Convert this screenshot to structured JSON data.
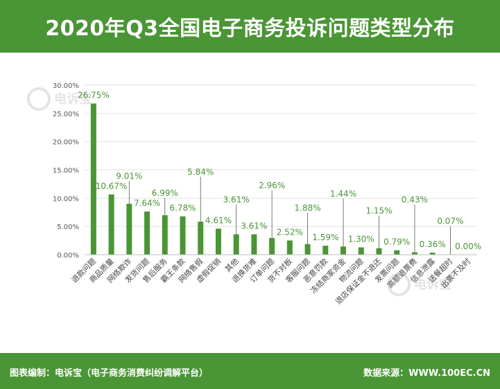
{
  "header": {
    "title": "2020年Q3全国电子商务投诉问题类型分布"
  },
  "footer": {
    "left": "图表编制：电诉宝（电子商务消费纠纷调解平台）",
    "right": "数据来源：WWW.100EC.CN"
  },
  "watermark": {
    "text": "电诉宝"
  },
  "colors": {
    "header_bg": "#4a9535",
    "bar": "#4a9535",
    "label": "#4a9535"
  },
  "chart_data": {
    "type": "bar",
    "categories": [
      "退款问题",
      "商品质量",
      "网络欺诈",
      "发货问题",
      "售后服务",
      "霸王条款",
      "网络售假",
      "虚假促销",
      "其他",
      "退换货难",
      "订单问题",
      "货不对板",
      "客服问题",
      "恶意罚款",
      "冻结商家资金",
      "物流问题",
      "退店保证金不退还",
      "发票问题",
      "高额退票费",
      "信息泄露",
      "送餐超时",
      "出票不及时"
    ],
    "values": [
      26.75,
      10.67,
      9.01,
      7.64,
      6.99,
      6.78,
      5.84,
      4.61,
      3.61,
      3.61,
      2.96,
      2.52,
      1.88,
      1.59,
      1.44,
      1.3,
      1.15,
      0.79,
      0.43,
      0.36,
      0.07,
      0.0
    ],
    "value_labels": [
      "26.75%",
      "10.67%",
      "9.01%",
      "7.64%",
      "6.99%",
      "6.78%",
      "5.84%",
      "4.61%",
      "3.61%",
      "3.61%",
      "2.96%",
      "2.52%",
      "1.88%",
      "1.59%",
      "1.44%",
      "1.30%",
      "1.15%",
      "0.79%",
      "0.43%",
      "0.36%",
      "0.07%",
      "0.00%"
    ],
    "y_ticks": [
      "0.00%",
      "5.00%",
      "10.00%",
      "15.00%",
      "20.00%",
      "25.00%",
      "30.00%"
    ],
    "ylim": [
      0,
      30
    ],
    "grid": true
  }
}
